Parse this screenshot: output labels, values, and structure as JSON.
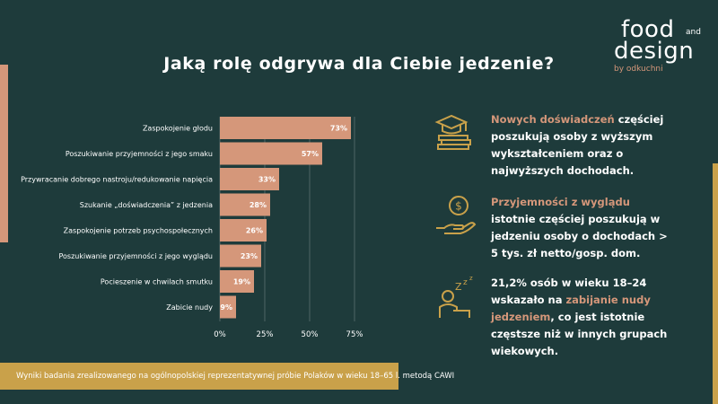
{
  "header": {
    "title": "Jaką rolę odgrywa dla Ciebie jedzenie?"
  },
  "logo": {
    "line1": "food",
    "and": "and",
    "line2": "design",
    "byline": "by odkuchni"
  },
  "colors": {
    "background": "#1e3b3b",
    "bar": "#d5977a",
    "accent_gold": "#c9a14a",
    "text": "#ffffff"
  },
  "chart_data": {
    "type": "bar",
    "orientation": "horizontal",
    "categories": [
      "Zaspokojenie głodu",
      "Poszukiwanie przyjemności z jego smaku",
      "Przywracanie dobrego nastroju/redukowanie napięcia",
      "Szukanie „doświadczenia” z jedzenia",
      "Zaspokojenie potrzeb psychospołecznych",
      "Poszukiwanie przyjemności z jego wyglądu",
      "Pocieszenie w chwilach smutku",
      "Zabicie nudy"
    ],
    "values": [
      73,
      57,
      33,
      28,
      26,
      23,
      19,
      9
    ],
    "value_labels": [
      "73%",
      "57%",
      "33%",
      "28%",
      "26%",
      "23%",
      "19%",
      "9%"
    ],
    "xticks": [
      "0%",
      "25%",
      "50%",
      "75%"
    ],
    "xlim": [
      0,
      75
    ],
    "grid": true
  },
  "insights": [
    {
      "icon": "graduation-books-icon",
      "highlight": "Nowych doświadczeń",
      "text": " częściej poszukują osoby z wyższym wykształceniem oraz o najwyższych dochodach."
    },
    {
      "icon": "money-hand-icon",
      "highlight": "Przyjemności z wyglądu",
      "text": " istotnie częściej poszukują w jedzeniu osoby o dochodach > 5 tys. zł netto/gosp. dom."
    },
    {
      "icon": "bored-person-icon",
      "text_before": "21,2% osób w wieku 18–24 wskazało na ",
      "highlight": "zabijanie nudy jedzeniem",
      "text_after": ", co jest istotnie częstsze niż w innych grupach wiekowych."
    }
  ],
  "footer": {
    "note": "Wyniki badania zrealizowanego na ogólnopolskiej reprezentatywnej próbie Polaków w wieku 18–65 l. metodą CAWI"
  }
}
